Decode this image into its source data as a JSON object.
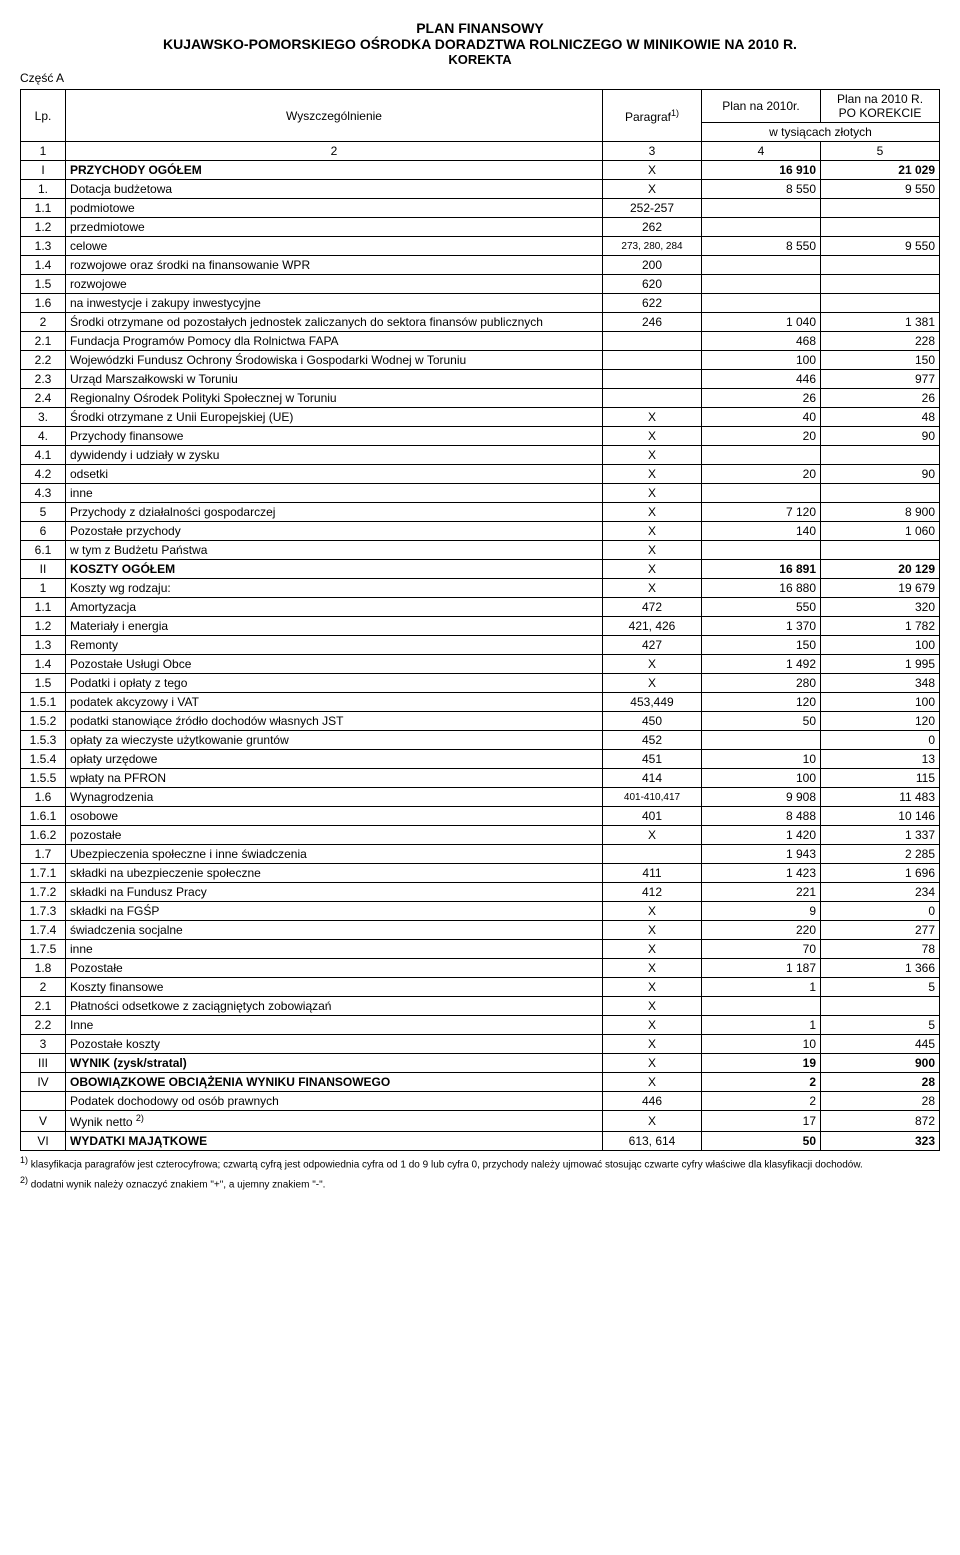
{
  "title1": "PLAN FINANSOWY",
  "title2": "KUJAWSKO-POMORSKIEGO OŚRODKA DORADZTWA ROLNICZEGO W MINIKOWIE NA 2010 R.",
  "title3": "KOREKTA",
  "part": "Część A",
  "hdr_lp": "Lp.",
  "hdr_name": "Wyszczególnienie",
  "hdr_par": "Paragraf",
  "hdr_par_sup": "1)",
  "hdr_plan": "Plan na 2010r.",
  "hdr_plan2a": "Plan na 2010 R.",
  "hdr_plan2b": "PO KOREKCIE",
  "hdr_unit": "w tysiącach złotych",
  "hdr_c1": "1",
  "hdr_c2": "2",
  "hdr_c3": "3",
  "hdr_c4": "4",
  "hdr_c5": "5",
  "rows": [
    {
      "lp": "I",
      "name": "PRZYCHODY OGÓŁEM",
      "par": "X",
      "p1": "16 910",
      "p2": "21 029",
      "bold": true
    },
    {
      "lp": "1.",
      "name": "Dotacja budżetowa",
      "par": "X",
      "p1": "8 550",
      "p2": "9 550"
    },
    {
      "lp": "1.1",
      "name": "podmiotowe",
      "par": "252-257",
      "p1": "",
      "p2": ""
    },
    {
      "lp": "1.2",
      "name": "przedmiotowe",
      "par": "262",
      "p1": "",
      "p2": ""
    },
    {
      "lp": "1.3",
      "name": "celowe",
      "par": "273, 280, 284",
      "p1": "8 550",
      "p2": "9 550"
    },
    {
      "lp": "1.4",
      "name": "rozwojowe oraz środki na finansowanie WPR",
      "par": "200",
      "p1": "",
      "p2": ""
    },
    {
      "lp": "1.5",
      "name": "rozwojowe",
      "par": "620",
      "p1": "",
      "p2": ""
    },
    {
      "lp": "1.6",
      "name": "na inwestycje i zakupy inwestycyjne",
      "par": "622",
      "p1": "",
      "p2": ""
    },
    {
      "lp": "2",
      "name": "Środki otrzymane od pozostałych jednostek zaliczanych do sektora finansów publicznych",
      "par": "246",
      "p1": "1 040",
      "p2": "1 381"
    },
    {
      "lp": "2.1",
      "name": "Fundacja Programów Pomocy dla Rolnictwa FAPA",
      "par": "",
      "p1": "468",
      "p2": "228"
    },
    {
      "lp": "2.2",
      "name": "Wojewódzki Fundusz Ochrony Środowiska i Gospodarki Wodnej w Toruniu",
      "par": "",
      "p1": "100",
      "p2": "150"
    },
    {
      "lp": "2.3",
      "name": "Urząd Marszałkowski w Toruniu",
      "par": "",
      "p1": "446",
      "p2": "977"
    },
    {
      "lp": "2.4",
      "name": "Regionalny Ośrodek Polityki Społecznej w Toruniu",
      "par": "",
      "p1": "26",
      "p2": "26"
    },
    {
      "lp": "3.",
      "name": "Środki otrzymane z Unii Europejskiej (UE)",
      "par": "X",
      "p1": "40",
      "p2": "48"
    },
    {
      "lp": "4.",
      "name": "Przychody finansowe",
      "par": "X",
      "p1": "20",
      "p2": "90"
    },
    {
      "lp": "4.1",
      "name": "dywidendy i udziały w zysku",
      "par": "X",
      "p1": "",
      "p2": ""
    },
    {
      "lp": "4.2",
      "name": "odsetki",
      "par": "X",
      "p1": "20",
      "p2": "90"
    },
    {
      "lp": "4.3",
      "name": "inne",
      "par": "X",
      "p1": "",
      "p2": ""
    },
    {
      "lp": "5",
      "name": "Przychody z działalności gospodarczej",
      "par": "X",
      "p1": "7 120",
      "p2": "8 900"
    },
    {
      "lp": "6",
      "name": "Pozostałe przychody",
      "par": "X",
      "p1": "140",
      "p2": "1 060"
    },
    {
      "lp": "6.1",
      "name": "w tym z Budżetu Państwa",
      "par": "X",
      "p1": "",
      "p2": ""
    },
    {
      "lp": "II",
      "name": "KOSZTY OGÓŁEM",
      "par": "X",
      "p1": "16 891",
      "p2": "20 129",
      "bold": true
    },
    {
      "lp": "1",
      "name": "Koszty wg rodzaju:",
      "par": "X",
      "p1": "16 880",
      "p2": "19 679"
    },
    {
      "lp": "1.1",
      "name": "Amortyzacja",
      "par": "472",
      "p1": "550",
      "p2": "320"
    },
    {
      "lp": "1.2",
      "name": "Materiały i energia",
      "par": "421, 426",
      "p1": "1 370",
      "p2": "1 782"
    },
    {
      "lp": "1.3",
      "name": "Remonty",
      "par": "427",
      "p1": "150",
      "p2": "100"
    },
    {
      "lp": "1.4",
      "name": "Pozostałe Usługi Obce",
      "par": "X",
      "p1": "1 492",
      "p2": "1 995"
    },
    {
      "lp": "1.5",
      "name": "Podatki i opłaty z tego",
      "par": "X",
      "p1": "280",
      "p2": "348"
    },
    {
      "lp": "1.5.1",
      "name": "podatek akcyzowy i VAT",
      "par": "453,449",
      "p1": "120",
      "p2": "100"
    },
    {
      "lp": "1.5.2",
      "name": "podatki stanowiące źródło dochodów własnych JST",
      "par": "450",
      "p1": "50",
      "p2": "120"
    },
    {
      "lp": "1.5.3",
      "name": "opłaty za wieczyste użytkowanie gruntów",
      "par": "452",
      "p1": "",
      "p2": "0"
    },
    {
      "lp": "1.5.4",
      "name": "opłaty urzędowe",
      "par": "451",
      "p1": "10",
      "p2": "13"
    },
    {
      "lp": "1.5.5",
      "name": "wpłaty na PFRON",
      "par": "414",
      "p1": "100",
      "p2": "115"
    },
    {
      "lp": "1.6",
      "name": "Wynagrodzenia",
      "par": "401-410,417",
      "p1": "9 908",
      "p2": "11 483"
    },
    {
      "lp": "1.6.1",
      "name": "osobowe",
      "par": "401",
      "p1": "8 488",
      "p2": "10 146"
    },
    {
      "lp": "1.6.2",
      "name": "pozostałe",
      "par": "X",
      "p1": "1 420",
      "p2": "1 337"
    },
    {
      "lp": "1.7",
      "name": "Ubezpieczenia społeczne i inne świadczenia",
      "par": "",
      "p1": "1 943",
      "p2": "2 285"
    },
    {
      "lp": "1.7.1",
      "name": "składki na ubezpieczenie społeczne",
      "par": "411",
      "p1": "1 423",
      "p2": "1 696"
    },
    {
      "lp": "1.7.2",
      "name": "składki na Fundusz Pracy",
      "par": "412",
      "p1": "221",
      "p2": "234"
    },
    {
      "lp": "1.7.3",
      "name": "składki na FGŚP",
      "par": "X",
      "p1": "9",
      "p2": "0"
    },
    {
      "lp": "1.7.4",
      "name": "świadczenia socjalne",
      "par": "X",
      "p1": "220",
      "p2": "277"
    },
    {
      "lp": "1.7.5",
      "name": "inne",
      "par": "X",
      "p1": "70",
      "p2": "78"
    },
    {
      "lp": "1.8",
      "name": "Pozostałe",
      "par": "X",
      "p1": "1 187",
      "p2": "1 366"
    },
    {
      "lp": "2",
      "name": "Koszty finansowe",
      "par": "X",
      "p1": "1",
      "p2": "5"
    },
    {
      "lp": "2.1",
      "name": "Płatności odsetkowe z zaciągniętych zobowiązań",
      "par": "X",
      "p1": "",
      "p2": ""
    },
    {
      "lp": "2.2",
      "name": "Inne",
      "par": "X",
      "p1": "1",
      "p2": "5"
    },
    {
      "lp": "3",
      "name": "Pozostałe koszty",
      "par": "X",
      "p1": "10",
      "p2": "445"
    },
    {
      "lp": "III",
      "name": "WYNIK (zysk/stratal)",
      "par": "X",
      "p1": "19",
      "p2": "900",
      "bold": true
    },
    {
      "lp": "IV",
      "name": "OBOWIĄZKOWE OBCIĄŻENIA WYNIKU FINANSOWEGO",
      "par": "X",
      "p1": "2",
      "p2": "28",
      "bold": true
    },
    {
      "lp": "",
      "name": "Podatek dochodowy od osób prawnych",
      "par": "446",
      "p1": "2",
      "p2": "28"
    },
    {
      "lp": "V",
      "name": "Wynik netto ",
      "par": "X",
      "p1": "17",
      "p2": "872",
      "sup": "2)"
    },
    {
      "lp": "VI",
      "name": "WYDATKI MAJĄTKOWE",
      "par": "613, 614",
      "p1": "50",
      "p2": "323",
      "bold": true
    }
  ],
  "note1_sup": "1)",
  "note1": " klasyfikacja paragrafów jest czterocyfrowa; czwartą cyfrą jest odpowiednia cyfra od 1 do 9 lub cyfra 0, przychody należy ujmować stosując czwarte cyfry właściwe dla klasyfikacji dochodów.",
  "note2_sup": "2)",
  "note2": " dodatni wynik należy oznaczyć znakiem \"+\", a ujemny znakiem \"-\"."
}
